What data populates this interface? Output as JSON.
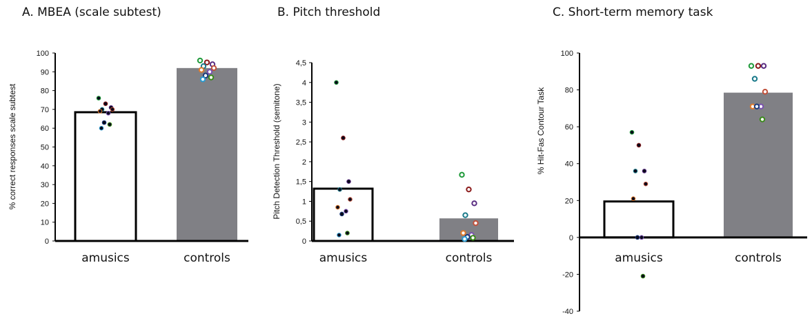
{
  "chart_data": [
    {
      "type": "bar",
      "title": "A. MBEA (scale subtest)",
      "ylabel": "% correct responses scale subtest",
      "xlabel": "",
      "categories": [
        "amusics",
        "controls"
      ],
      "values": [
        68.5,
        92
      ],
      "bar_colors": [
        "#ffffff",
        "#808085"
      ],
      "ylim": [
        0,
        100
      ],
      "yticks": [
        0,
        10,
        20,
        30,
        40,
        50,
        60,
        70,
        80,
        90,
        100
      ],
      "ytick_labels": [
        "0",
        "10",
        "20",
        "30",
        "40",
        "50",
        "60",
        "70",
        "80",
        "90",
        "100"
      ],
      "points": [
        {
          "group": "amusics",
          "values": [
            76,
            73,
            71,
            70,
            70,
            69,
            68,
            63,
            62,
            60
          ],
          "style": "filled"
        },
        {
          "group": "controls",
          "values": [
            96,
            95,
            94,
            93,
            92,
            91,
            90,
            88,
            87,
            86
          ],
          "style": "ring"
        }
      ]
    },
    {
      "type": "bar",
      "title": "B. Pitch threshold",
      "ylabel": "Pitch Detection Threshold (semitone)",
      "xlabel": "",
      "categories": [
        "amusics",
        "controls"
      ],
      "values": [
        1.32,
        0.57
      ],
      "bar_colors": [
        "#ffffff",
        "#808085"
      ],
      "ylim": [
        0,
        4.5
      ],
      "yticks": [
        0,
        0.5,
        1,
        1.5,
        2,
        2.5,
        3,
        3.5,
        4,
        4.5
      ],
      "ytick_labels": [
        "0",
        "0,5",
        "1",
        "1,5",
        "2",
        "2,5",
        "3",
        "3,5",
        "4",
        "4,5"
      ],
      "points": [
        {
          "group": "amusics",
          "values": [
            4.0,
            2.6,
            1.5,
            1.3,
            1.05,
            0.85,
            0.75,
            0.68,
            0.2,
            0.15
          ],
          "style": "filled"
        },
        {
          "group": "controls",
          "values": [
            1.67,
            1.3,
            0.95,
            0.65,
            0.45,
            0.2,
            0.15,
            0.1,
            0.08,
            0.05
          ],
          "style": "ring"
        }
      ]
    },
    {
      "type": "bar",
      "title": "C. Short-term memory task",
      "ylabel": "% Hit-Fas Contour Task",
      "xlabel": "",
      "categories": [
        "amusics",
        "controls"
      ],
      "values": [
        19.5,
        78.5
      ],
      "bar_colors": [
        "#ffffff",
        "#808085"
      ],
      "ylim": [
        -40,
        100
      ],
      "yticks": [
        -40,
        -20,
        0,
        20,
        40,
        60,
        80,
        100
      ],
      "ytick_labels": [
        "-40",
        "-20",
        "0",
        "20",
        "40",
        "60",
        "80",
        "100"
      ],
      "points": [
        {
          "group": "amusics",
          "values": [
            57,
            50,
            36,
            36,
            29,
            21,
            0,
            0,
            -21
          ],
          "style": "filled"
        },
        {
          "group": "controls",
          "values": [
            93,
            93,
            93,
            86,
            79,
            71,
            71,
            71,
            64
          ],
          "style": "ring"
        }
      ]
    }
  ],
  "point_palette": [
    "#1f9a3a",
    "#8b1a1a",
    "#5a2d82",
    "#1a7a8a",
    "#c0503a",
    "#e07a2a",
    "#7a4fb0",
    "#1a3a7a",
    "#3a8a1a",
    "#2a9ad0"
  ]
}
